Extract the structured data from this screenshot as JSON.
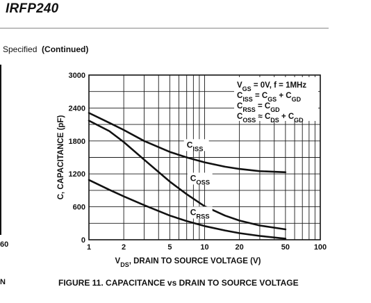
{
  "page": {
    "doc_title": "IRFP240",
    "section_prefix": "Specified",
    "section_continued": "(Continued)",
    "left_fragment_60": "60",
    "left_fragment_n": "N",
    "figure_caption": "FIGURE 11.  CAPACITANCE vs DRAIN TO SOURCE VOLTAGE"
  },
  "chart_data": {
    "type": "line",
    "x_scale": "log",
    "xlim": [
      1,
      100
    ],
    "ylim": [
      0,
      3000
    ],
    "grid": true,
    "xlabel": {
      "main": "V",
      "sub": "DS",
      "rest": ", DRAIN TO SOURCE VOLTAGE (V)"
    },
    "ylabel": "C, CAPACITANCE (pF)",
    "x_ticks": [
      1,
      2,
      5,
      10,
      20,
      50,
      100
    ],
    "x_tick_labels": [
      "1",
      "2",
      "5",
      "10",
      "20",
      "50",
      "100"
    ],
    "y_ticks": [
      0,
      600,
      1200,
      1800,
      2400,
      3000
    ],
    "y_tick_labels": [
      "0",
      "600",
      "1200",
      "1800",
      "2400",
      "3000"
    ],
    "legend_placement": "top-right",
    "conditions": [
      [
        {
          "t": "V"
        },
        {
          "t": "GS",
          "s": "sub"
        },
        {
          "t": " = 0V, f = 1MHz"
        }
      ],
      [
        {
          "t": "C"
        },
        {
          "t": "ISS",
          "s": "sub"
        },
        {
          "t": " = C"
        },
        {
          "t": "GS",
          "s": "sub"
        },
        {
          "t": " + C"
        },
        {
          "t": "GD",
          "s": "sub"
        }
      ],
      [
        {
          "t": "C"
        },
        {
          "t": "RSS",
          "s": "sub"
        },
        {
          "t": " = C"
        },
        {
          "t": "GD",
          "s": "sub"
        }
      ],
      [
        {
          "t": "C"
        },
        {
          "t": "OSS",
          "s": "sub"
        },
        {
          "t": " ≈ C"
        },
        {
          "t": "DS",
          "s": "sub"
        },
        {
          "t": " + C"
        },
        {
          "t": "GD",
          "s": "sub"
        }
      ]
    ],
    "series": [
      {
        "name": "C_ISS",
        "label_main": "C",
        "label_sub": "ISS",
        "label_at": [
          7,
          1680
        ],
        "x": [
          1,
          1.5,
          2,
          3,
          5,
          7,
          10,
          15,
          20,
          30,
          50
        ],
        "y": [
          2310,
          2130,
          2000,
          1800,
          1600,
          1500,
          1410,
          1330,
          1290,
          1250,
          1230
        ]
      },
      {
        "name": "C_OSS",
        "label_main": "C",
        "label_sub": "OSS",
        "label_at": [
          7.5,
          1070
        ],
        "x": [
          1,
          1.5,
          2,
          3,
          5,
          7,
          10,
          15,
          20,
          30,
          50
        ],
        "y": [
          2170,
          1980,
          1780,
          1460,
          1060,
          830,
          610,
          440,
          350,
          260,
          190
        ]
      },
      {
        "name": "C_RSS",
        "label_main": "C",
        "label_sub": "RSS",
        "label_at": [
          7.5,
          450
        ],
        "x": [
          1,
          1.5,
          2,
          3,
          5,
          7,
          10,
          15,
          20,
          30,
          50
        ],
        "y": [
          1090,
          910,
          790,
          630,
          440,
          340,
          250,
          170,
          120,
          70,
          20
        ]
      }
    ],
    "colors": {
      "line": "#111111",
      "grid": "#1a1a1a",
      "bg": "#ffffff"
    }
  }
}
